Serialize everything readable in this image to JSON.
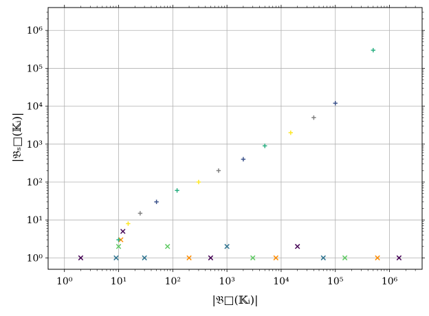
{
  "chart_data": {
    "type": "scatter",
    "xlabel": "|𝔅□(𝕂ᵢ)|",
    "ylabel": "|𝔅ₛ□(𝕂ᵢ)|",
    "xscale": "log",
    "yscale": "log",
    "xlim": [
      0.5,
      4000000
    ],
    "ylim": [
      0.5,
      4000000
    ],
    "grid": true,
    "x_tick_labels": [
      "10⁰",
      "10¹",
      "10²",
      "10³",
      "10⁴",
      "10⁵",
      "10⁶"
    ],
    "y_tick_labels": [
      "10⁰",
      "10¹",
      "10²",
      "10³",
      "10⁴",
      "10⁵",
      "10⁶"
    ],
    "colors": [
      "#440154",
      "#472d7b",
      "#3b528b",
      "#2c728e",
      "#21918c",
      "#28ae80",
      "#5ec962",
      "#addc30",
      "#fde725",
      "#ff8c00",
      "#d62d6a",
      "#808080"
    ],
    "series": [
      {
        "marker": "x",
        "x": [
          2,
          9,
          10,
          11,
          12,
          30,
          80,
          200,
          500,
          1000,
          3000,
          8000,
          20000,
          60000,
          150000,
          600000,
          1500000
        ],
        "y": [
          1,
          1,
          2,
          3,
          5,
          1,
          2,
          1,
          1,
          2,
          1,
          1,
          2,
          1,
          1,
          1,
          1
        ]
      },
      {
        "marker": "+",
        "x": [
          10,
          15,
          25,
          50,
          120,
          300,
          700,
          2000,
          5000,
          15000,
          40000,
          100000,
          500000
        ],
        "y": [
          3,
          8,
          15,
          30,
          60,
          100,
          200,
          400,
          900,
          2000,
          5000,
          12000,
          300000
        ]
      }
    ]
  }
}
